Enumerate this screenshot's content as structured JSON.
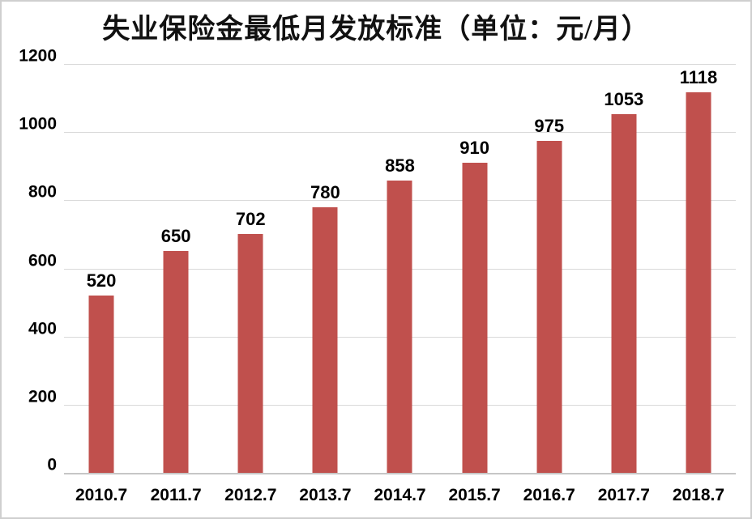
{
  "chart_data": {
    "type": "bar",
    "title": "失业保险金最低月发放标准（单位：元/月）",
    "categories": [
      "2010.7",
      "2011.7",
      "2012.7",
      "2013.7",
      "2014.7",
      "2015.7",
      "2016.7",
      "2017.7",
      "2018.7"
    ],
    "values": [
      520,
      650,
      702,
      780,
      858,
      910,
      975,
      1053,
      1118
    ],
    "value_labels_shown": true,
    "xlabel": "",
    "ylabel": "",
    "ylim": [
      0,
      1200
    ],
    "yticks": [
      0,
      200,
      400,
      600,
      800,
      1000,
      1200
    ],
    "grid": "horizontal",
    "legend": "none",
    "bar_color": "#c0504d",
    "gridline_color": "#d9d9d9",
    "axis_line_color": "#c6c6c6",
    "text_color": "#000000",
    "background_color": "#ffffff"
  }
}
